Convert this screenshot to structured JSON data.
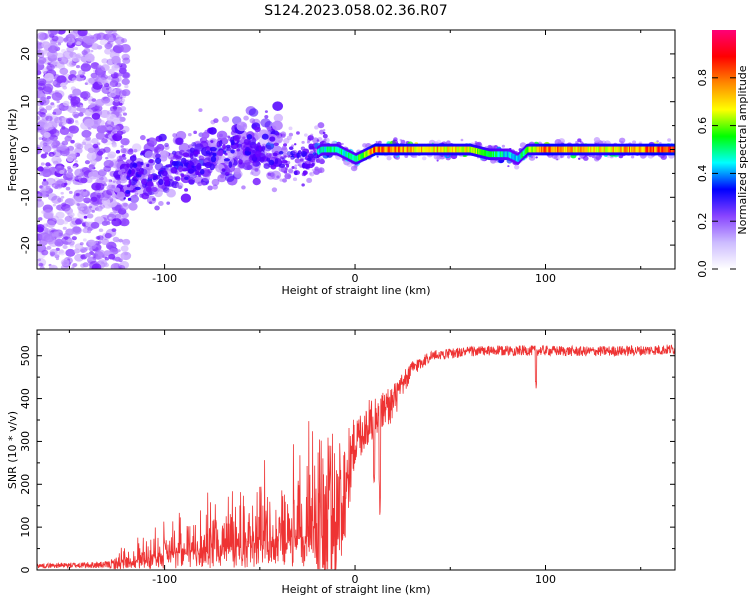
{
  "title": "S124.2023.058.02.36.R07",
  "chart_data": [
    {
      "type": "heatmap",
      "xlabel": "Height of straight line (km)",
      "ylabel": "Frequency (Hz)",
      "xlim": [
        -167,
        168
      ],
      "ylim": [
        -25,
        25
      ],
      "xticks": [
        -100,
        0,
        100
      ],
      "yticks": [
        -20,
        -10,
        0,
        10,
        20
      ],
      "colorbar": {
        "label": "Normalized spectral amplitude",
        "range": [
          0,
          1
        ],
        "ticks": [
          0.0,
          0.2,
          0.4,
          0.6,
          0.8
        ],
        "colormap": [
          "#ffffff",
          "#6600ff",
          "#0000ff",
          "#00ffff",
          "#00ff00",
          "#ffff00",
          "#ff0000",
          "#ff0099"
        ]
      },
      "ridge": {
        "x": [
          -120,
          -100,
          -80,
          -60,
          -45,
          -35,
          -25,
          -18,
          -10,
          -5,
          0,
          10,
          30,
          60,
          70,
          80,
          85,
          90,
          100,
          130,
          168
        ],
        "y": [
          -6,
          -5,
          -2,
          0,
          0,
          -2,
          -2,
          0,
          0,
          -1,
          -2,
          0,
          0,
          0,
          -1,
          -1,
          -2,
          0,
          0,
          0,
          0
        ],
        "amplitude": [
          0.25,
          0.3,
          0.3,
          0.3,
          0.35,
          0.25,
          0.3,
          0.45,
          0.5,
          0.45,
          0.5,
          0.8,
          0.75,
          0.7,
          0.55,
          0.4,
          0.4,
          0.6,
          0.8,
          0.7,
          0.85
        ]
      },
      "noise_region_x": [
        -167,
        -120
      ]
    },
    {
      "type": "line",
      "xlabel": "Height of straight line (km)",
      "ylabel": "SNR (10 * v/v)",
      "xlim": [
        -167,
        168
      ],
      "ylim": [
        0,
        560
      ],
      "xticks": [
        -100,
        0,
        100
      ],
      "yticks": [
        0,
        100,
        200,
        300,
        400,
        500
      ],
      "color": "#ee3333",
      "envelope": {
        "x": [
          -167,
          -130,
          -110,
          -100,
          -80,
          -60,
          -40,
          -30,
          -20,
          -10,
          -5,
          0,
          10,
          20,
          25,
          30,
          40,
          50,
          60,
          80,
          100,
          120,
          150,
          168
        ],
        "base": [
          10,
          12,
          25,
          40,
          45,
          55,
          70,
          80,
          100,
          120,
          200,
          300,
          360,
          390,
          430,
          470,
          500,
          505,
          510,
          512,
          512,
          510,
          512,
          515
        ],
        "spread": [
          5,
          8,
          40,
          60,
          80,
          90,
          110,
          150,
          200,
          220,
          120,
          60,
          50,
          45,
          30,
          20,
          12,
          12,
          12,
          12,
          12,
          12,
          12,
          12
        ]
      }
    }
  ]
}
